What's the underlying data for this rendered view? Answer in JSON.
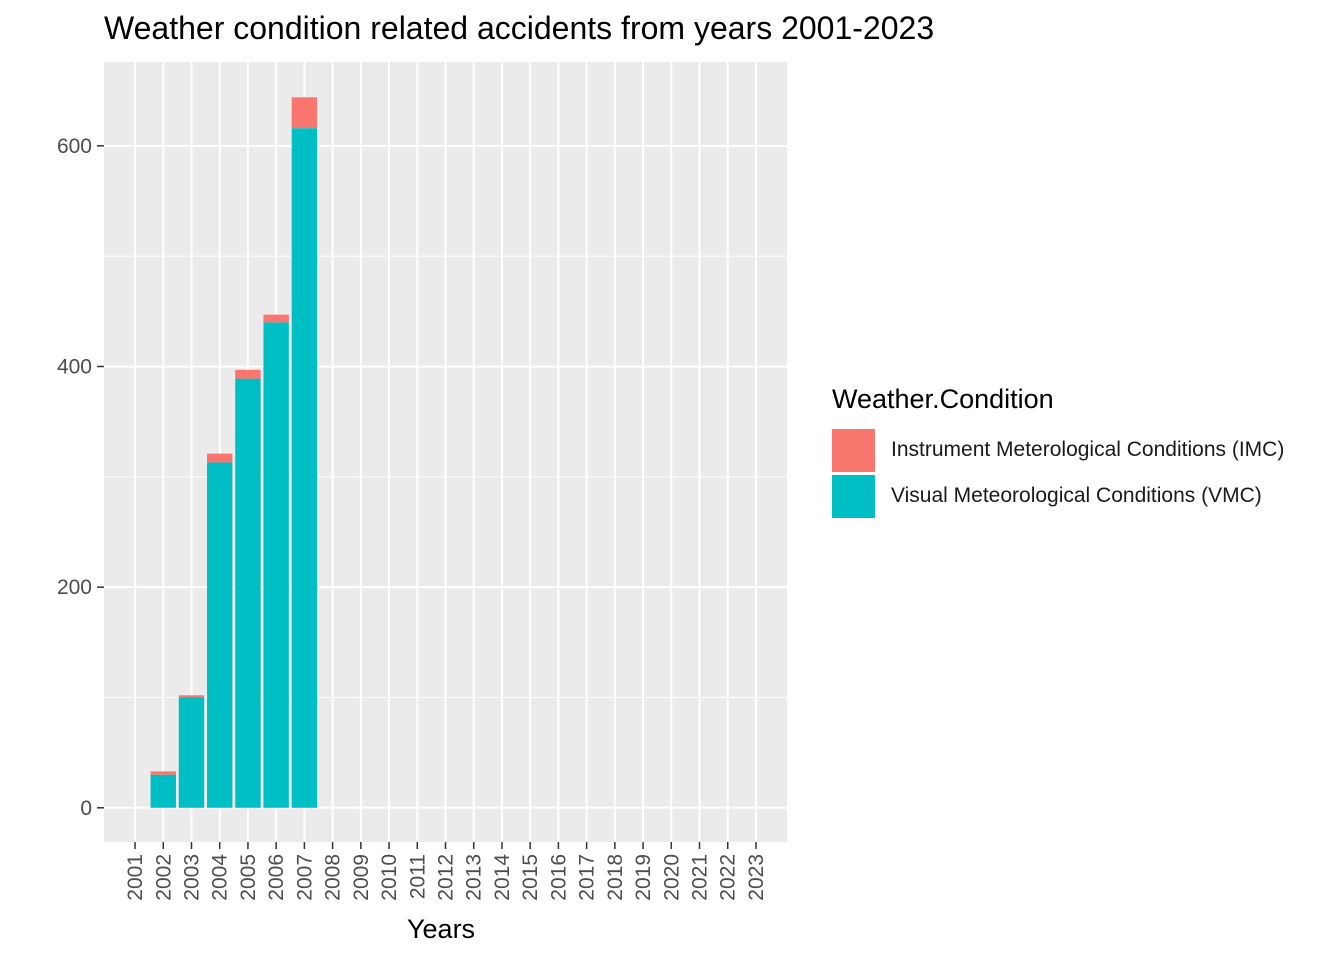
{
  "chart_data": {
    "type": "bar",
    "stacked": true,
    "title": "Weather condition related accidents from years 2001-2023",
    "xlabel": "Years",
    "ylabel": "",
    "categories": [
      "2001",
      "2002",
      "2003",
      "2004",
      "2005",
      "2006",
      "2007",
      "2008",
      "2009",
      "2010",
      "2011",
      "2012",
      "2013",
      "2014",
      "2015",
      "2016",
      "2017",
      "2018",
      "2019",
      "2020",
      "2021",
      "2022",
      "2023"
    ],
    "series": [
      {
        "name": "Visual Meteorological Conditions (VMC)",
        "color": "#00BFC4",
        "values": [
          0,
          30,
          100,
          313,
          389,
          440,
          616,
          0,
          0,
          0,
          0,
          0,
          0,
          0,
          0,
          0,
          0,
          0,
          0,
          0,
          0,
          0,
          0
        ]
      },
      {
        "name": "Instrument Meterological Conditions (IMC)",
        "color": "#F8766D",
        "values": [
          0,
          3,
          2,
          8,
          8,
          7,
          28,
          0,
          0,
          0,
          0,
          0,
          0,
          0,
          0,
          0,
          0,
          0,
          0,
          0,
          0,
          0,
          0
        ]
      }
    ],
    "ylim": [
      -31,
      676
    ],
    "yticks": [
      0,
      200,
      400,
      600
    ],
    "grid": true,
    "legend_position": "right",
    "legend_title": "Weather.Condition"
  }
}
